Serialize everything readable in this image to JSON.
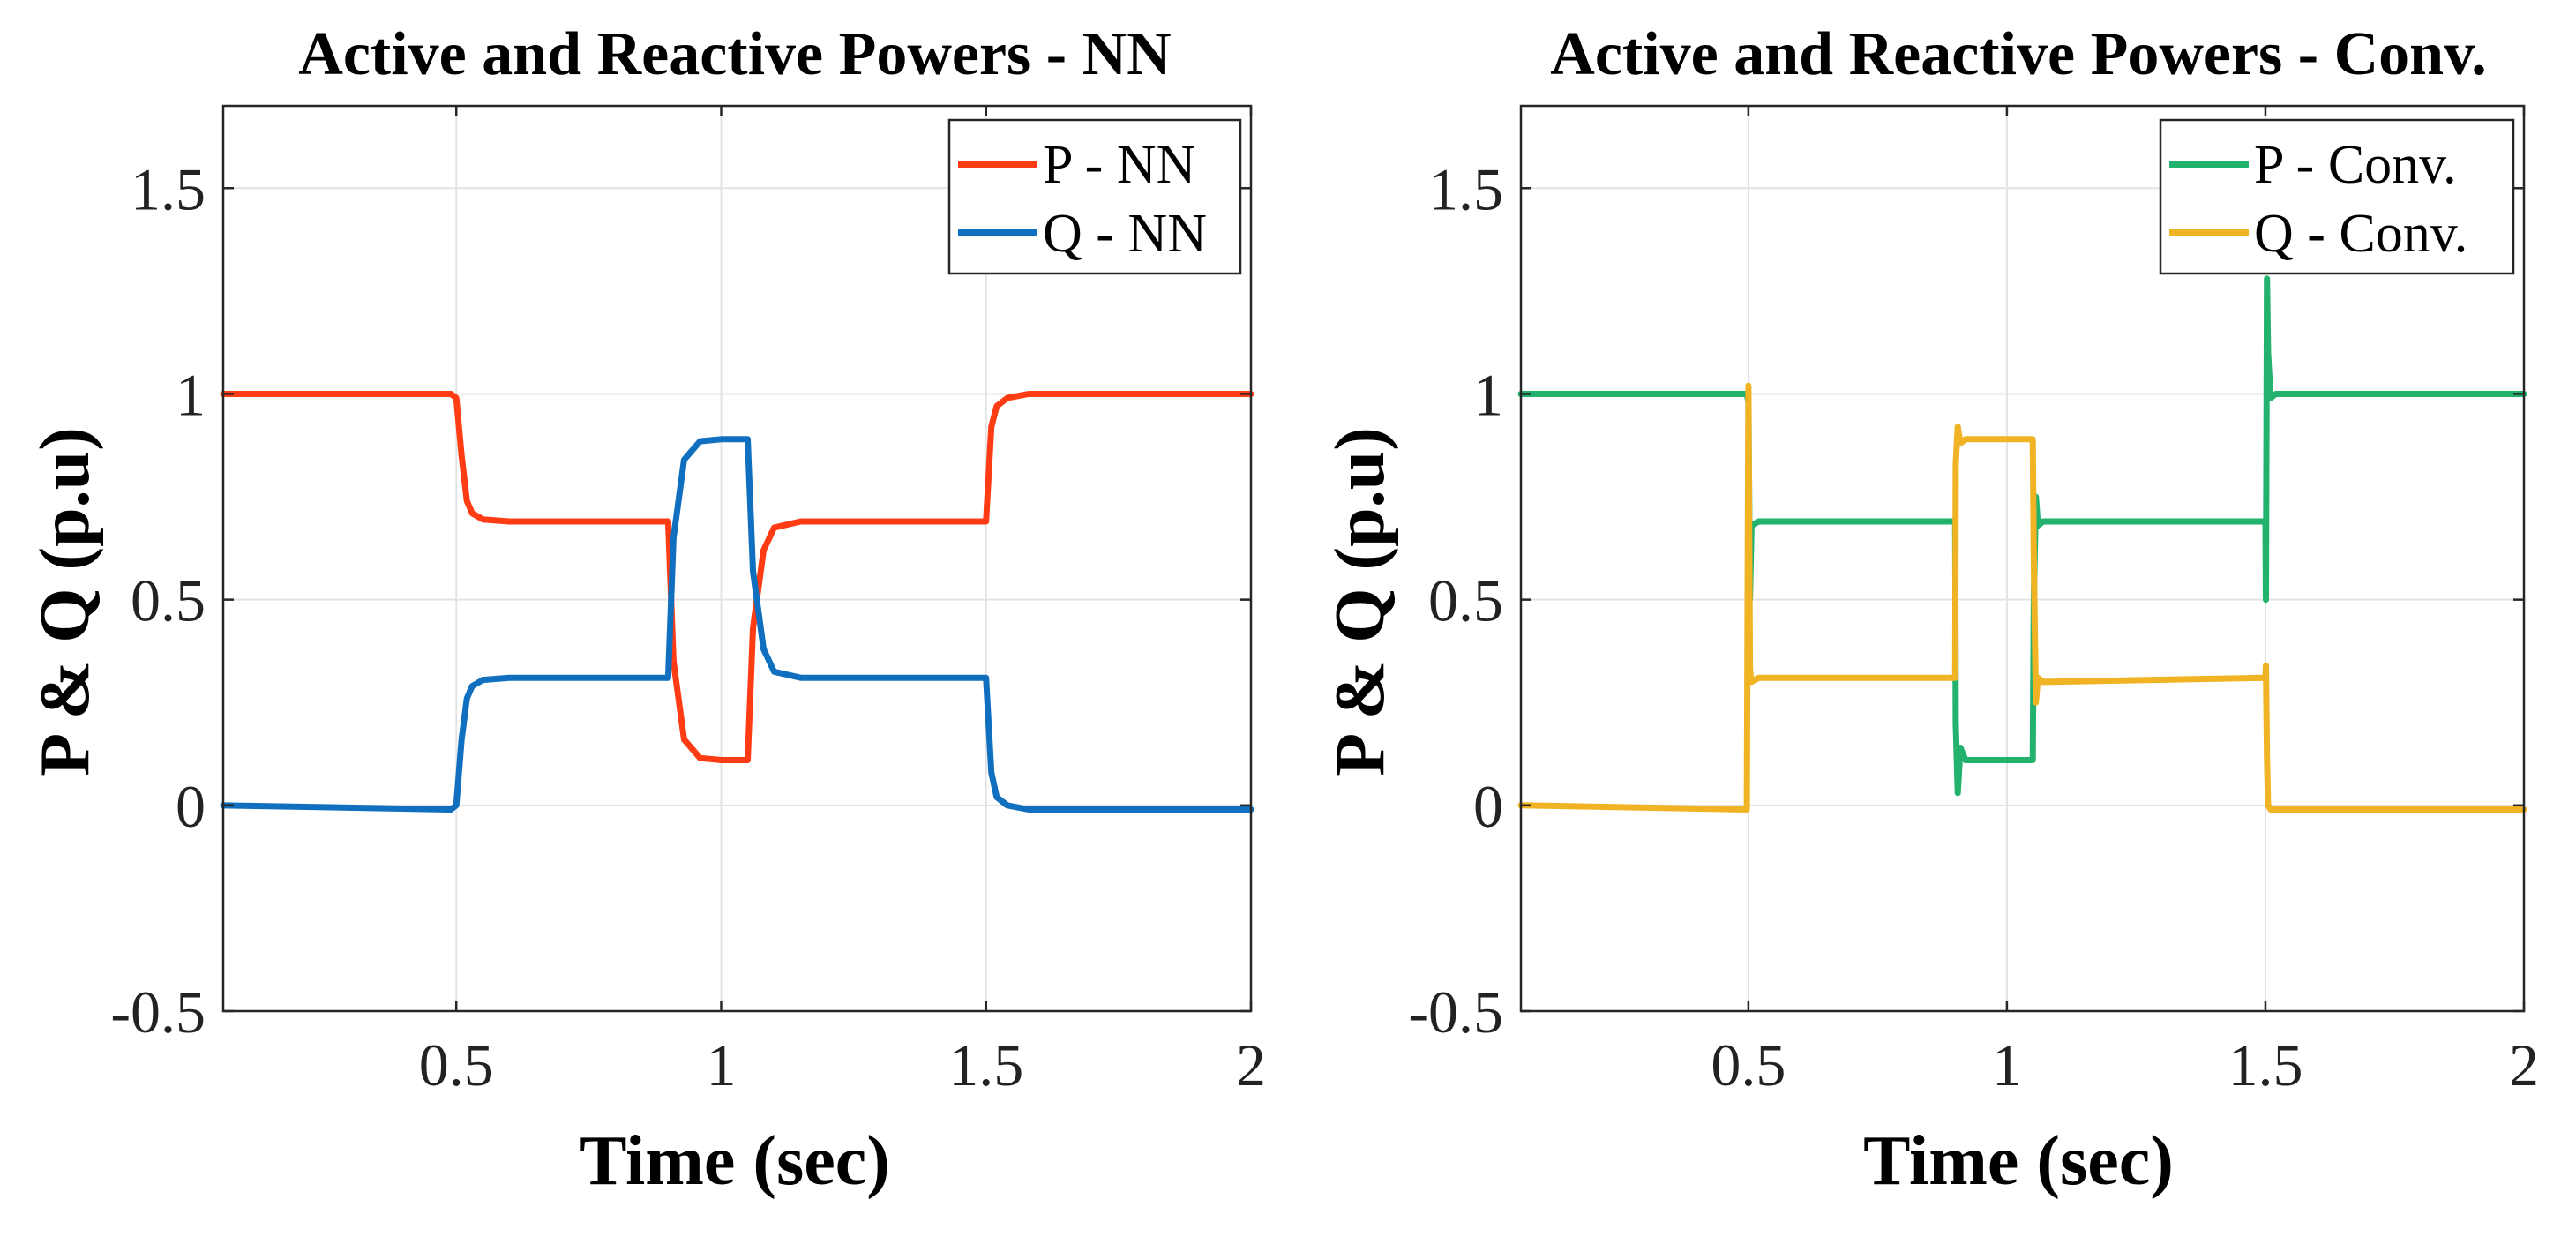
{
  "chart_data": [
    {
      "type": "line",
      "title": "Active and Reactive Powers - NN",
      "xlabel": "Time (sec)",
      "ylabel": "P & Q (p.u)",
      "xlim": [
        0.06,
        2.0
      ],
      "ylim": [
        -0.5,
        1.7
      ],
      "xticks": [
        0.5,
        1,
        1.5,
        2
      ],
      "xtick_labels": [
        "0.5",
        "1",
        "1.5",
        "2"
      ],
      "yticks": [
        -0.5,
        0,
        0.5,
        1,
        1.5
      ],
      "ytick_labels": [
        "-0.5",
        "0",
        "0.5",
        "1",
        "1.5"
      ],
      "grid": true,
      "legend_position": "top-right",
      "series": [
        {
          "name": "P - NN",
          "color": "#ff3c14",
          "x": [
            0.06,
            0.49,
            0.5,
            0.51,
            0.52,
            0.53,
            0.55,
            0.6,
            0.9,
            0.91,
            0.93,
            0.96,
            1.0,
            1.05,
            1.06,
            1.08,
            1.1,
            1.15,
            1.5,
            1.51,
            1.52,
            1.54,
            1.58,
            2.0
          ],
          "y": [
            1.0,
            1.0,
            0.99,
            0.85,
            0.74,
            0.71,
            0.695,
            0.69,
            0.69,
            0.35,
            0.16,
            0.115,
            0.11,
            0.11,
            0.43,
            0.62,
            0.675,
            0.69,
            0.69,
            0.92,
            0.97,
            0.99,
            1.0,
            1.0
          ]
        },
        {
          "name": "Q - NN",
          "color": "#1070bf",
          "x": [
            0.06,
            0.49,
            0.5,
            0.51,
            0.52,
            0.53,
            0.55,
            0.6,
            0.9,
            0.91,
            0.93,
            0.96,
            1.0,
            1.05,
            1.06,
            1.08,
            1.1,
            1.15,
            1.5,
            1.51,
            1.52,
            1.54,
            1.58,
            2.0
          ],
          "y": [
            0.0,
            -0.01,
            0.0,
            0.16,
            0.26,
            0.29,
            0.305,
            0.31,
            0.31,
            0.65,
            0.84,
            0.885,
            0.89,
            0.89,
            0.57,
            0.38,
            0.325,
            0.31,
            0.31,
            0.08,
            0.02,
            0.0,
            -0.01,
            -0.01
          ]
        }
      ]
    },
    {
      "type": "line",
      "title": "Active and Reactive Powers - Conv.",
      "xlabel": "Time (sec)",
      "ylabel": "P & Q (p.u)",
      "xlim": [
        0.06,
        2.0
      ],
      "ylim": [
        -0.5,
        1.7
      ],
      "xticks": [
        0.5,
        1,
        1.5,
        2
      ],
      "xtick_labels": [
        "0.5",
        "1",
        "1.5",
        "2"
      ],
      "yticks": [
        -0.5,
        0,
        0.5,
        1,
        1.5
      ],
      "ytick_labels": [
        "-0.5",
        "0",
        "0.5",
        "1",
        "1.5"
      ],
      "grid": true,
      "legend_position": "top-right",
      "series": [
        {
          "name": "P - Conv.",
          "color": "#23b26e",
          "x": [
            0.06,
            0.497,
            0.5,
            0.503,
            0.506,
            0.52,
            0.9,
            0.901,
            0.905,
            0.91,
            0.92,
            1.0,
            1.05,
            1.052,
            1.056,
            1.06,
            1.07,
            1.5,
            1.501,
            1.503,
            1.505,
            1.51,
            1.52,
            2.0
          ],
          "y": [
            1.0,
            1.0,
            0.98,
            0.5,
            0.68,
            0.69,
            0.69,
            0.2,
            0.03,
            0.14,
            0.11,
            0.11,
            0.11,
            0.5,
            0.75,
            0.68,
            0.69,
            0.69,
            0.5,
            1.28,
            1.1,
            0.99,
            1.0,
            1.0
          ]
        },
        {
          "name": "Q - Conv.",
          "color": "#f0b323",
          "x": [
            0.06,
            0.497,
            0.5,
            0.503,
            0.506,
            0.52,
            0.9,
            0.901,
            0.905,
            0.91,
            0.92,
            1.0,
            1.05,
            1.052,
            1.056,
            1.06,
            1.07,
            1.5,
            1.501,
            1.503,
            1.505,
            1.51,
            1.52,
            2.0
          ],
          "y": [
            0.0,
            -0.01,
            1.02,
            0.33,
            0.3,
            0.31,
            0.31,
            0.83,
            0.92,
            0.88,
            0.89,
            0.89,
            0.89,
            0.6,
            0.25,
            0.31,
            0.3,
            0.31,
            0.34,
            0.12,
            0.0,
            -0.01,
            -0.01,
            -0.01
          ]
        }
      ]
    }
  ]
}
